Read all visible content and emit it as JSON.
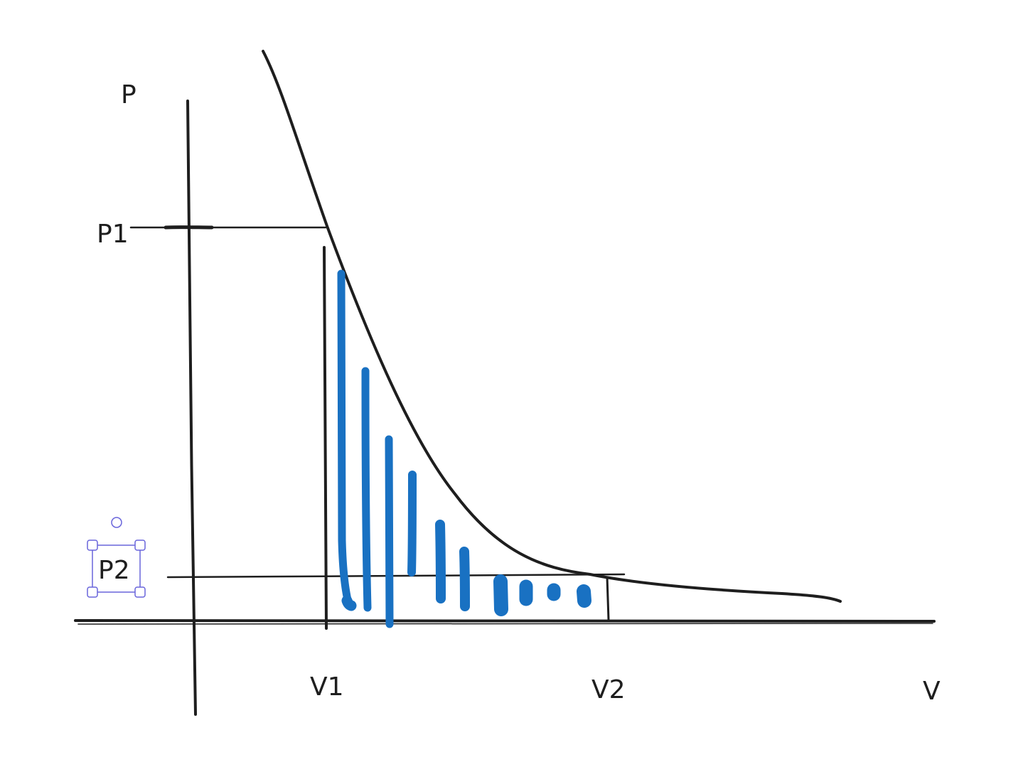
{
  "labels": {
    "p_axis": "P",
    "v_axis": "V",
    "p1": "P1",
    "p2": "P2",
    "v1": "V1",
    "v2": "V2"
  },
  "colors": {
    "ink": "#1e1e1e",
    "hatch": "#1971c2",
    "selection": "#6965db"
  },
  "selection": {
    "selected_element": "p2"
  }
}
